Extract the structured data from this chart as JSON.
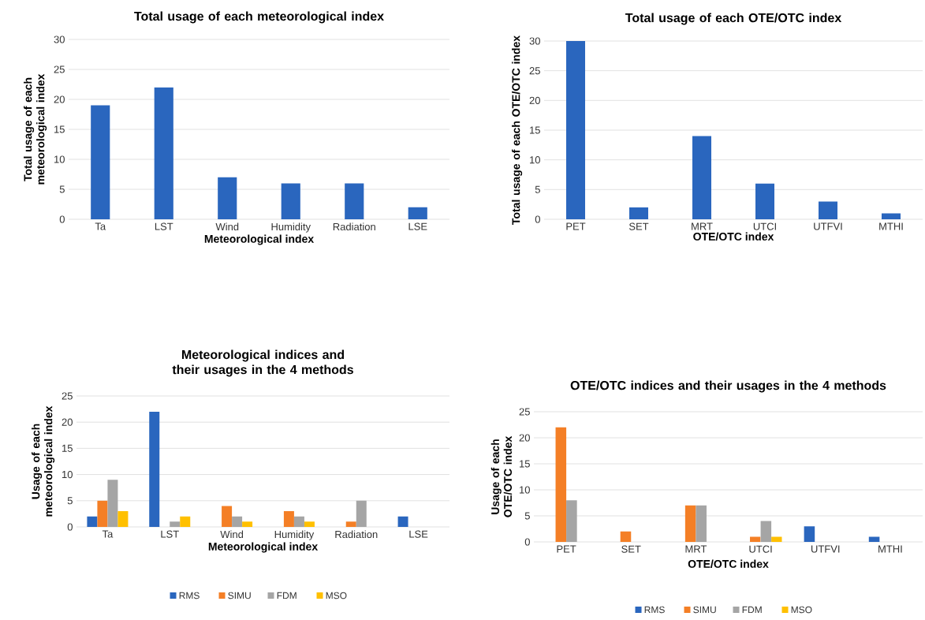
{
  "chart_data": [
    {
      "type": "bar",
      "title": "Total usage of each meteorological index",
      "xlabel": "Meteorological index",
      "ylabel": "Total usage of each meteorological index",
      "categories": [
        "Ta",
        "LST",
        "Wind",
        "Humidity",
        "Radiation",
        "LSE"
      ],
      "values": [
        19,
        22,
        7,
        6,
        6,
        2
      ],
      "color": "#2a66be",
      "ylim": [
        0,
        30
      ],
      "yticks": [
        0,
        5,
        10,
        15,
        20,
        25,
        30
      ],
      "grid": "y"
    },
    {
      "type": "bar",
      "title": "Total usage of each OTE/OTC index",
      "xlabel": "OTE/OTC index",
      "ylabel": "Total usage of each OTE/OTC index",
      "categories": [
        "PET",
        "SET",
        "MRT",
        "UTCI",
        "UTFVI",
        "MTHI"
      ],
      "values": [
        30,
        2,
        14,
        6,
        3,
        1
      ],
      "color": "#2a66be",
      "ylim": [
        0,
        30
      ],
      "yticks": [
        0,
        5,
        10,
        15,
        20,
        25,
        30
      ],
      "grid": "y"
    },
    {
      "type": "bar",
      "title": "Meteorological indices and their usages in the 4 methods",
      "xlabel": "Meteorological index",
      "ylabel": "Usage of each meteorological index",
      "categories": [
        "Ta",
        "LST",
        "Wind",
        "Humidity",
        "Radiation",
        "LSE"
      ],
      "series": [
        {
          "name": "RMS",
          "color": "#2a66be",
          "values": [
            2,
            22,
            null,
            null,
            null,
            2
          ]
        },
        {
          "name": "SIMU",
          "color": "#f47f26",
          "values": [
            5,
            null,
            4,
            3,
            1,
            null
          ]
        },
        {
          "name": "FDM",
          "color": "#a5a5a5",
          "values": [
            9,
            1,
            2,
            2,
            5,
            null
          ]
        },
        {
          "name": "MSO",
          "color": "#ffc000",
          "values": [
            3,
            2,
            1,
            1,
            null,
            null
          ]
        }
      ],
      "ylim": [
        0,
        25
      ],
      "yticks": [
        0,
        5,
        10,
        15,
        20,
        25
      ],
      "grid": "y",
      "legend": "bottom"
    },
    {
      "type": "bar",
      "title": "OTE/OTC indices and their usages in the 4 methods",
      "xlabel": "OTE/OTC index",
      "ylabel": "Usage of each OTE/OTC index",
      "categories": [
        "PET",
        "SET",
        "MRT",
        "UTCI",
        "UTFVI",
        "MTHI"
      ],
      "series": [
        {
          "name": "RMS",
          "color": "#2a66be",
          "values": [
            null,
            null,
            null,
            null,
            3,
            1
          ]
        },
        {
          "name": "SIMU",
          "color": "#f47f26",
          "values": [
            22,
            2,
            7,
            1,
            null,
            null
          ]
        },
        {
          "name": "FDM",
          "color": "#a5a5a5",
          "values": [
            8,
            null,
            7,
            4,
            null,
            null
          ]
        },
        {
          "name": "MSO",
          "color": "#ffc000",
          "values": [
            null,
            null,
            null,
            1,
            null,
            null
          ]
        }
      ],
      "ylim": [
        0,
        25
      ],
      "yticks": [
        0,
        5,
        10,
        15,
        20,
        25
      ],
      "grid": "y",
      "legend": "bottom"
    }
  ]
}
